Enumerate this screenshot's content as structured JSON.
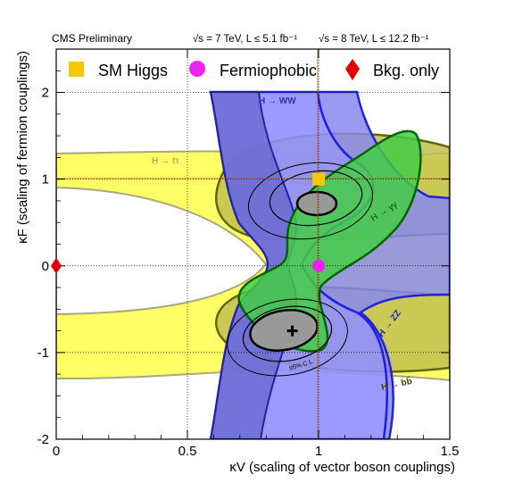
{
  "header": {
    "experiment": "CMS Preliminary",
    "lumi_7tev": "√s = 7 TeV, L ≤ 5.1 fb⁻¹",
    "lumi_8tev": "√s = 8 TeV, L ≤ 12.2 fb⁻¹"
  },
  "legend": {
    "placement": "top",
    "items": [
      {
        "label": "SM Higgs",
        "marker": "square",
        "color": "#f5c800"
      },
      {
        "label": "Fermiophobic",
        "marker": "circle",
        "color": "#ee22ee"
      },
      {
        "label": "Bkg. only",
        "marker": "diamond",
        "color": "#e00000"
      }
    ]
  },
  "chart_data": {
    "type": "scatter",
    "xlabel": "κV (scaling of vector boson couplings)",
    "ylabel": "κF (scaling of fermion couplings)",
    "xlim": [
      0,
      1.5
    ],
    "ylim": [
      -2,
      2.5
    ],
    "x_ticks": [
      0,
      0.5,
      1,
      1.5
    ],
    "y_ticks": [
      -2,
      -1,
      0,
      1,
      2
    ],
    "grid": "dotted",
    "channel_labels": [
      "H → ττ",
      "H → WW",
      "H → γγ",
      "H → ZZ",
      "H → bb̄"
    ],
    "channel_colors": {
      "tautau": "#ffff66",
      "ww": "#8f8fff",
      "gamgam": "#55cc55",
      "zz": "#8888ee",
      "bb": "#c0c050"
    },
    "contour_label": "95% C.L.",
    "points": [
      {
        "name": "SM Higgs",
        "x": 1.0,
        "y": 1.0
      },
      {
        "name": "Fermiophobic",
        "x": 1.0,
        "y": 0.0
      },
      {
        "name": "Bkg. only",
        "x": 0.0,
        "y": 0.0
      },
      {
        "name": "best fit",
        "x": 0.9,
        "y": -0.75
      }
    ]
  }
}
